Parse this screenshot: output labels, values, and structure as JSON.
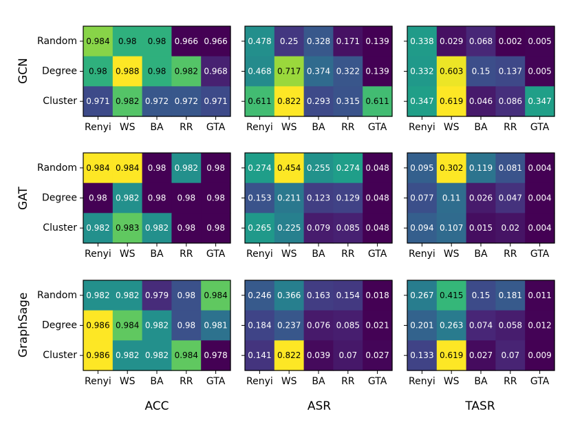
{
  "figure": {
    "column_titles": [
      "ACC",
      "ASR",
      "TASR"
    ],
    "row_titles": [
      "GCN",
      "GAT",
      "GraphSage"
    ]
  },
  "colormap": [
    "#440154",
    "#482878",
    "#3e4989",
    "#31688e",
    "#26828e",
    "#1f9e89",
    "#35b779",
    "#6ece58",
    "#b5de2b",
    "#fde725"
  ],
  "chart_data": [
    {
      "type": "heatmap",
      "model": "GCN",
      "metric": "ACC",
      "x": [
        "Renyi",
        "WS",
        "BA",
        "RR",
        "GTA"
      ],
      "y": [
        "Random",
        "Degree",
        "Cluster"
      ],
      "values": [
        [
          0.984,
          0.98,
          0.98,
          0.966,
          0.966
        ],
        [
          0.98,
          0.988,
          0.98,
          0.982,
          0.968
        ],
        [
          0.971,
          0.982,
          0.972,
          0.972,
          0.971
        ]
      ],
      "labels": [
        [
          "0.984",
          "0.98",
          "0.98",
          "0.966",
          "0.966"
        ],
        [
          "0.98",
          "0.988",
          "0.98",
          "0.982",
          "0.968"
        ],
        [
          "0.971",
          "0.982",
          "0.972",
          "0.972",
          "0.971"
        ]
      ]
    },
    {
      "type": "heatmap",
      "model": "GCN",
      "metric": "ASR",
      "x": [
        "Renyi",
        "WS",
        "BA",
        "RR",
        "GTA"
      ],
      "y": [
        "Random",
        "Degree",
        "Cluster"
      ],
      "values": [
        [
          0.478,
          0.25,
          0.328,
          0.171,
          0.139
        ],
        [
          0.468,
          0.717,
          0.374,
          0.322,
          0.139
        ],
        [
          0.611,
          0.822,
          0.293,
          0.315,
          0.611
        ]
      ],
      "labels": [
        [
          "0.478",
          "0.25",
          "0.328",
          "0.171",
          "0.139"
        ],
        [
          "0.468",
          "0.717",
          "0.374",
          "0.322",
          "0.139"
        ],
        [
          "0.611",
          "0.822",
          "0.293",
          "0.315",
          "0.611"
        ]
      ]
    },
    {
      "type": "heatmap",
      "model": "GCN",
      "metric": "TASR",
      "x": [
        "Renyi",
        "WS",
        "BA",
        "RR",
        "GTA"
      ],
      "y": [
        "Random",
        "Degree",
        "Cluster"
      ],
      "values": [
        [
          0.338,
          0.029,
          0.068,
          0.002,
          0.005
        ],
        [
          0.332,
          0.603,
          0.15,
          0.137,
          0.005
        ],
        [
          0.347,
          0.619,
          0.046,
          0.086,
          0.347
        ]
      ],
      "labels": [
        [
          "0.338",
          "0.029",
          "0.068",
          "0.002",
          "0.005"
        ],
        [
          "0.332",
          "0.603",
          "0.15",
          "0.137",
          "0.005"
        ],
        [
          "0.347",
          "0.619",
          "0.046",
          "0.086",
          "0.347"
        ]
      ]
    },
    {
      "type": "heatmap",
      "model": "GAT",
      "metric": "ACC",
      "x": [
        "Renyi",
        "WS",
        "BA",
        "RR",
        "GTA"
      ],
      "y": [
        "Random",
        "Degree",
        "Cluster"
      ],
      "values": [
        [
          0.984,
          0.984,
          0.98,
          0.982,
          0.98
        ],
        [
          0.98,
          0.982,
          0.98,
          0.98,
          0.98
        ],
        [
          0.982,
          0.983,
          0.982,
          0.98,
          0.98
        ]
      ],
      "labels": [
        [
          "0.984",
          "0.984",
          "0.98",
          "0.982",
          "0.98"
        ],
        [
          "0.98",
          "0.982",
          "0.98",
          "0.98",
          "0.98"
        ],
        [
          "0.982",
          "0.983",
          "0.982",
          "0.98",
          "0.98"
        ]
      ]
    },
    {
      "type": "heatmap",
      "model": "GAT",
      "metric": "ASR",
      "x": [
        "Renyi",
        "WS",
        "BA",
        "RR",
        "GTA"
      ],
      "y": [
        "Random",
        "Degree",
        "Cluster"
      ],
      "values": [
        [
          0.274,
          0.454,
          0.255,
          0.274,
          0.048
        ],
        [
          0.153,
          0.211,
          0.123,
          0.129,
          0.048
        ],
        [
          0.265,
          0.225,
          0.079,
          0.085,
          0.048
        ]
      ],
      "labels": [
        [
          "0.274",
          "0.454",
          "0.255",
          "0.274",
          "0.048"
        ],
        [
          "0.153",
          "0.211",
          "0.123",
          "0.129",
          "0.048"
        ],
        [
          "0.265",
          "0.225",
          "0.079",
          "0.085",
          "0.048"
        ]
      ]
    },
    {
      "type": "heatmap",
      "model": "GAT",
      "metric": "TASR",
      "x": [
        "Renyi",
        "WS",
        "BA",
        "RR",
        "GTA"
      ],
      "y": [
        "Random",
        "Degree",
        "Cluster"
      ],
      "values": [
        [
          0.095,
          0.302,
          0.119,
          0.081,
          0.004
        ],
        [
          0.077,
          0.11,
          0.026,
          0.047,
          0.004
        ],
        [
          0.094,
          0.107,
          0.015,
          0.02,
          0.004
        ]
      ],
      "labels": [
        [
          "0.095",
          "0.302",
          "0.119",
          "0.081",
          "0.004"
        ],
        [
          "0.077",
          "0.11",
          "0.026",
          "0.047",
          "0.004"
        ],
        [
          "0.094",
          "0.107",
          "0.015",
          "0.02",
          "0.004"
        ]
      ]
    },
    {
      "type": "heatmap",
      "model": "GraphSage",
      "metric": "ACC",
      "x": [
        "Renyi",
        "WS",
        "BA",
        "RR",
        "GTA"
      ],
      "y": [
        "Random",
        "Degree",
        "Cluster"
      ],
      "values": [
        [
          0.982,
          0.982,
          0.979,
          0.98,
          0.984
        ],
        [
          0.986,
          0.984,
          0.982,
          0.98,
          0.981
        ],
        [
          0.986,
          0.982,
          0.982,
          0.984,
          0.978
        ]
      ],
      "labels": [
        [
          "0.982",
          "0.982",
          "0.979",
          "0.98",
          "0.984"
        ],
        [
          "0.986",
          "0.984",
          "0.982",
          "0.98",
          "0.981"
        ],
        [
          "0.986",
          "0.982",
          "0.982",
          "0.984",
          "0.978"
        ]
      ]
    },
    {
      "type": "heatmap",
      "model": "GraphSage",
      "metric": "ASR",
      "x": [
        "Renyi",
        "WS",
        "BA",
        "RR",
        "GTA"
      ],
      "y": [
        "Random",
        "Degree",
        "Cluster"
      ],
      "values": [
        [
          0.246,
          0.366,
          0.163,
          0.154,
          0.018
        ],
        [
          0.184,
          0.237,
          0.076,
          0.085,
          0.021
        ],
        [
          0.141,
          0.822,
          0.039,
          0.07,
          0.027
        ]
      ],
      "labels": [
        [
          "0.246",
          "0.366",
          "0.163",
          "0.154",
          "0.018"
        ],
        [
          "0.184",
          "0.237",
          "0.076",
          "0.085",
          "0.021"
        ],
        [
          "0.141",
          "0.822",
          "0.039",
          "0.07",
          "0.027"
        ]
      ]
    },
    {
      "type": "heatmap",
      "model": "GraphSage",
      "metric": "TASR",
      "x": [
        "Renyi",
        "WS",
        "BA",
        "RR",
        "GTA"
      ],
      "y": [
        "Random",
        "Degree",
        "Cluster"
      ],
      "values": [
        [
          0.267,
          0.415,
          0.15,
          0.181,
          0.011
        ],
        [
          0.201,
          0.263,
          0.074,
          0.058,
          0.012
        ],
        [
          0.133,
          0.619,
          0.027,
          0.07,
          0.009
        ]
      ],
      "labels": [
        [
          "0.267",
          "0.415",
          "0.15",
          "0.181",
          "0.011"
        ],
        [
          "0.201",
          "0.263",
          "0.074",
          "0.058",
          "0.012"
        ],
        [
          "0.133",
          "0.619",
          "0.027",
          "0.07",
          "0.009"
        ]
      ]
    }
  ]
}
